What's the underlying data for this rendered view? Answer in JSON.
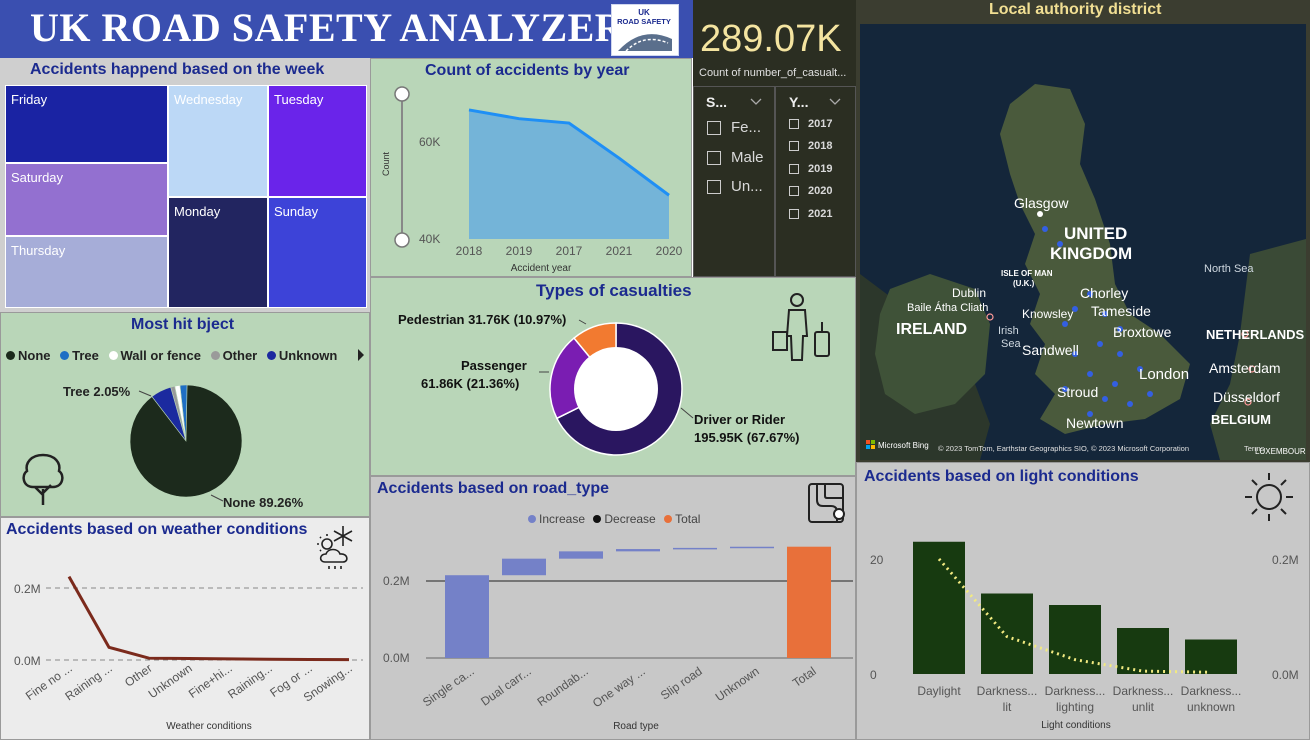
{
  "header": {
    "title": "UK ROAD SAFETY ANALYZER",
    "logo_text_line1": "UK",
    "logo_text_line2": "ROAD SAFETY"
  },
  "week_panel": {
    "title": "Accidents happend based on the week",
    "days": [
      {
        "label": "Friday",
        "color": "#1a23a3"
      },
      {
        "label": "Wednesday",
        "color": "#bcd8f6"
      },
      {
        "label": "Tuesday",
        "color": "#6a24ea"
      },
      {
        "label": "Saturday",
        "color": "#9370d0"
      },
      {
        "label": "Monday",
        "color": "#222560"
      },
      {
        "label": "Sunday",
        "color": "#3d43d8"
      },
      {
        "label": "Thursday",
        "color": "#a6add8"
      }
    ]
  },
  "year_panel": {
    "title": "Count of accidents by year",
    "y_axis_title": "Count",
    "x_axis_title": "Accident year",
    "y_ticks": [
      "60K",
      "40K"
    ]
  },
  "kpi": {
    "value": "289.07K",
    "label": "Count of number_of_casualt..."
  },
  "sex_slicer": {
    "header": "S...",
    "items": [
      "Fe...",
      "Male",
      "Un..."
    ]
  },
  "year_slicer": {
    "header": "Y...",
    "items": [
      "2017",
      "2018",
      "2019",
      "2020",
      "2021"
    ]
  },
  "map_panel": {
    "title": "Local authority district",
    "labels": {
      "glasgow": "Glasgow",
      "united": "UNITED",
      "kingdom": "KINGDOM",
      "north_sea": "North Sea",
      "isle_of_man": "ISLE OF MAN",
      "uk": "(U.K.)",
      "dublin": "Dublin",
      "baile": "Baile Átha Cliath",
      "ireland": "IRELAND",
      "irish": "Irish",
      "sea": "Sea",
      "chorley": "Chorley",
      "knowsley": "Knowsley",
      "tameside": "Tameside",
      "broxtowe": "Broxtowe",
      "netherlands": "NETHERLANDS",
      "amsterdam": "Amsterdam",
      "sandwell": "Sandwell",
      "london": "London",
      "stroud": "Stroud",
      "dusseldorf": "Düsseldorf",
      "belgium": "BELGIUM",
      "newtown": "Newtown",
      "luxembourg": "LUXEMBOURG"
    },
    "brand": "Microsoft Bing",
    "copyright": "© 2023 TomTom, Earthstar Geographics SIO, © 2023 Microsoft Corporation",
    "terms": "Terms"
  },
  "object_panel": {
    "title": "Most hit bject",
    "legend": [
      {
        "label": "None",
        "color": "#1c2a1c"
      },
      {
        "label": "Tree",
        "color": "#1f6fc4"
      },
      {
        "label": "Wall or fence",
        "color": "#ffffff"
      },
      {
        "label": "Other",
        "color": "#9a9a9a"
      },
      {
        "label": "Unknown",
        "color": "#1b2a9f"
      }
    ],
    "label_tree": "Tree 2.05%",
    "label_none": "None 89.26%"
  },
  "casualty_panel": {
    "title": "Types of casualties",
    "label_pedestrian": "Pedestrian 31.76K (10.97%)",
    "label_passenger_1": "Passenger",
    "label_passenger_2": "61.86K (21.36%)",
    "label_driver_1": "Driver or Rider",
    "label_driver_2": "195.95K (67.67%)"
  },
  "weather_panel": {
    "title": "Accidents based on weather conditions",
    "x_axis_title": "Weather conditions",
    "y_ticks": [
      "0.2M",
      "0.0M"
    ],
    "series_color": "#7b2a1c"
  },
  "road_panel": {
    "title": "Accidents based on road_type",
    "x_axis_title": "Road type",
    "legend": [
      {
        "label": "Increase",
        "color": "#7481c8"
      },
      {
        "label": "Decrease",
        "color": "#111111"
      },
      {
        "label": "Total",
        "color": "#e8703a"
      }
    ],
    "y_ticks": [
      "0.2M",
      "0.0M"
    ]
  },
  "light_panel": {
    "title": "Accidents based on light conditions",
    "x_axis_title": "Light conditions",
    "y_left_ticks": [
      "20",
      "0"
    ],
    "y_right_ticks": [
      "0.2M",
      "0.0M"
    ],
    "bar_color": "#173a10",
    "line_color": "#f2ea80"
  },
  "chart_data": [
    {
      "type": "area",
      "title": "Count of accidents by year",
      "xlabel": "Accident year",
      "ylabel": "Count",
      "categories": [
        "2018",
        "2019",
        "2017",
        "2021",
        "2020"
      ],
      "values": [
        67500,
        65500,
        64500,
        56500,
        48000
      ],
      "ylim": [
        38000,
        70000
      ]
    },
    {
      "type": "line",
      "title": "Accidents based on weather conditions",
      "xlabel": "Weather conditions",
      "categories": [
        "Fine no ...",
        "Raining ...",
        "Other",
        "Unknown",
        "Fine+hi...",
        "Raining...",
        "Fog or ...",
        "Snowing..."
      ],
      "values": [
        230000,
        35000,
        5000,
        4000,
        3000,
        2000,
        1500,
        1000
      ],
      "ylim": [
        0,
        240000
      ]
    },
    {
      "type": "bar",
      "title": "Accidents based on road_type",
      "xlabel": "Road type",
      "categories": [
        "Single ca...",
        "Dual carr...",
        "Roundab...",
        "One way ...",
        "Slip road",
        "Unknown",
        "Total"
      ],
      "values": [
        215000,
        43000,
        19000,
        6000,
        3000,
        3000,
        289070
      ],
      "ylim": [
        0,
        300000
      ]
    },
    {
      "type": "bar",
      "title": "Accidents based on light conditions",
      "xlabel": "Light conditions",
      "categories": [
        "Daylight",
        "Darkness... lit",
        "Darkness... lighting",
        "Darkness... unlit",
        "Darkness... unknown"
      ],
      "values": [
        23,
        14,
        12,
        8,
        6
      ],
      "series": [
        {
          "values": [
            0.2,
            0.065,
            0.025,
            0.005,
            0.003
          ]
        }
      ]
    },
    {
      "type": "pie",
      "title": "Most hit bject",
      "categories": [
        "None",
        "Tree",
        "Wall or fence",
        "Other",
        "Unknown"
      ],
      "values": [
        89.26,
        2.05,
        1.5,
        1.2,
        6.0
      ]
    },
    {
      "type": "pie",
      "title": "Types of casualties",
      "categories": [
        "Driver or Rider",
        "Passenger",
        "Pedestrian"
      ],
      "values": [
        67.67,
        21.36,
        10.97
      ]
    },
    {
      "type": "heatmap",
      "title": "Accidents happend based on the week",
      "categories": [
        "Friday",
        "Wednesday",
        "Tuesday",
        "Saturday",
        "Monday",
        "Sunday",
        "Thursday"
      ]
    }
  ]
}
